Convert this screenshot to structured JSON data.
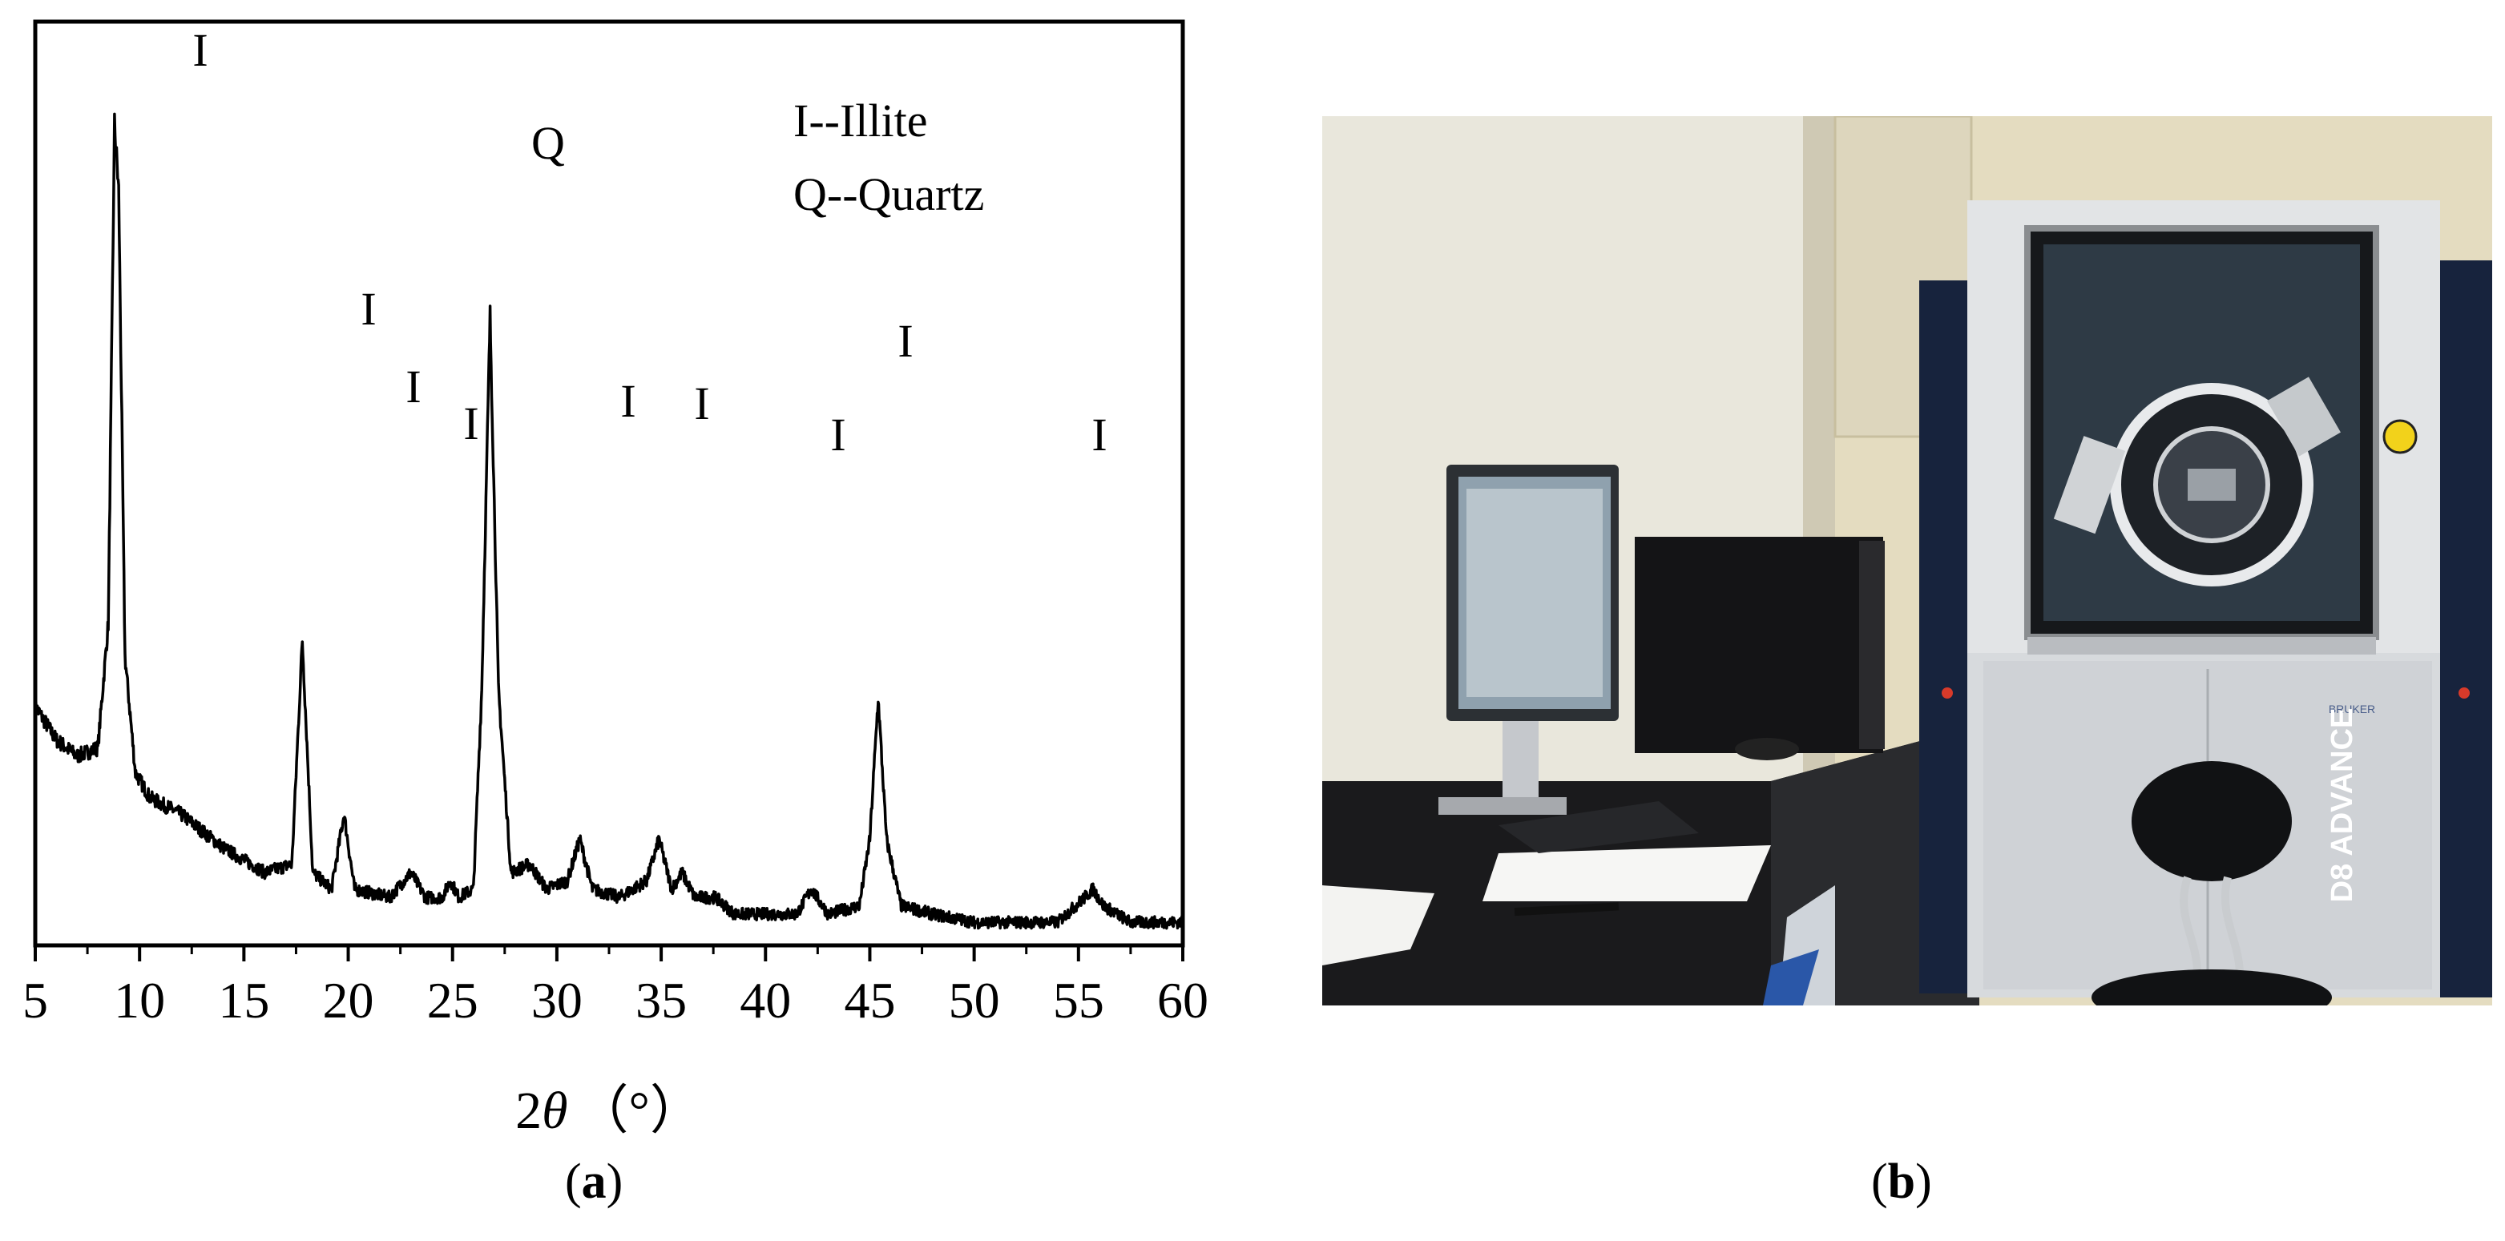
{
  "chart_data": {
    "type": "line",
    "xlabel_prefix": "2",
    "xlabel_symbol": "θ",
    "xlabel_unit": "（°）",
    "xlim": [
      5,
      60
    ],
    "x_ticks": [
      5,
      10,
      15,
      20,
      25,
      30,
      35,
      40,
      45,
      50,
      55,
      60
    ],
    "x_tick_labels": [
      "5",
      "10",
      "15",
      "20",
      "25",
      "30",
      "35",
      "40",
      "45",
      "50",
      "55",
      "60"
    ],
    "ylim": [
      0,
      100
    ],
    "y_ticks_shown": false,
    "legend": [
      "I--Illite",
      "Q--Quartz"
    ],
    "legend_position": "top-right",
    "series": [
      {
        "x": [
          5,
          6,
          7,
          8,
          8.5,
          8.8,
          9.0,
          9.3,
          9.8,
          10.5,
          12,
          14,
          16,
          17.3,
          17.8,
          18.3,
          19.2,
          19.8,
          20.3,
          22,
          23.0,
          23.7,
          24.5,
          24.9,
          25.3,
          26.0,
          26.4,
          26.8,
          27.2,
          27.8,
          28.7,
          29.5,
          30.5,
          31.1,
          31.7,
          33.0,
          34.3,
          34.9,
          35.5,
          36.0,
          36.6,
          37.6,
          38.5,
          40,
          41.5,
          42.2,
          43.0,
          44.5,
          45.0,
          45.4,
          45.8,
          46.5,
          48,
          50,
          52,
          54,
          55.3,
          55.7,
          56.2,
          57.5,
          60
        ],
        "y": [
          28,
          24,
          22,
          23,
          38,
          98,
          90,
          34,
          20,
          17,
          15,
          11,
          8,
          9,
          36,
          8,
          6,
          15,
          6,
          5,
          8,
          5,
          5,
          7,
          5,
          6,
          30,
          75,
          30,
          8,
          9,
          6,
          7,
          12,
          6,
          5,
          7,
          12,
          6,
          8,
          5,
          5,
          3,
          3,
          3,
          6,
          3,
          4,
          12,
          29,
          12,
          4,
          3,
          2,
          2,
          2,
          5,
          6,
          4,
          2,
          2
        ]
      }
    ],
    "annotations": [
      {
        "text": "I",
        "x": 8.9
      },
      {
        "text": "I",
        "x": 17.8
      },
      {
        "text": "I",
        "x": 19.8
      },
      {
        "text": "I",
        "x": 23.0
      },
      {
        "text": "I",
        "x": 25.9
      },
      {
        "text": "Q",
        "x": 26.7
      },
      {
        "text": "I",
        "x": 33.4
      },
      {
        "text": "I",
        "x": 35.6
      },
      {
        "text": "I",
        "x": 42.2
      },
      {
        "text": "I",
        "x": 45.4
      },
      {
        "text": "I",
        "x": 55.7
      }
    ]
  },
  "captions": {
    "a": "a",
    "b": "b"
  },
  "photo": {
    "instrument_label": "D8 ADVANCE",
    "brand_label": "BRUKER"
  }
}
